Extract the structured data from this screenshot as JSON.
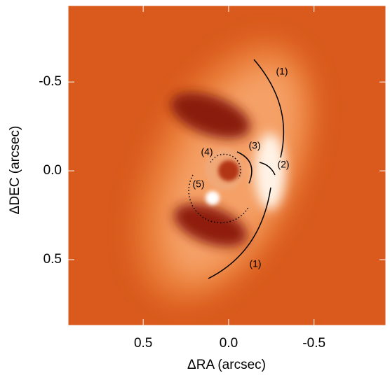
{
  "chart_data": {
    "type": "image",
    "xlabel": "ΔRA (arcsec)",
    "ylabel": "ΔDEC (arcsec)",
    "xlim": [
      0.94,
      -0.92
    ],
    "ylim": [
      -0.93,
      0.87
    ],
    "xticks": [
      0.5,
      {
        "value": 0,
        "label": "0.0"
      },
      -0.5
    ],
    "yticks": [
      -0.5,
      {
        "value": 0,
        "label": "0.0"
      },
      0.5
    ],
    "annotations": [
      "(1)",
      "(1)",
      "(2)",
      "(3)",
      "(4)",
      "(5)"
    ]
  }
}
